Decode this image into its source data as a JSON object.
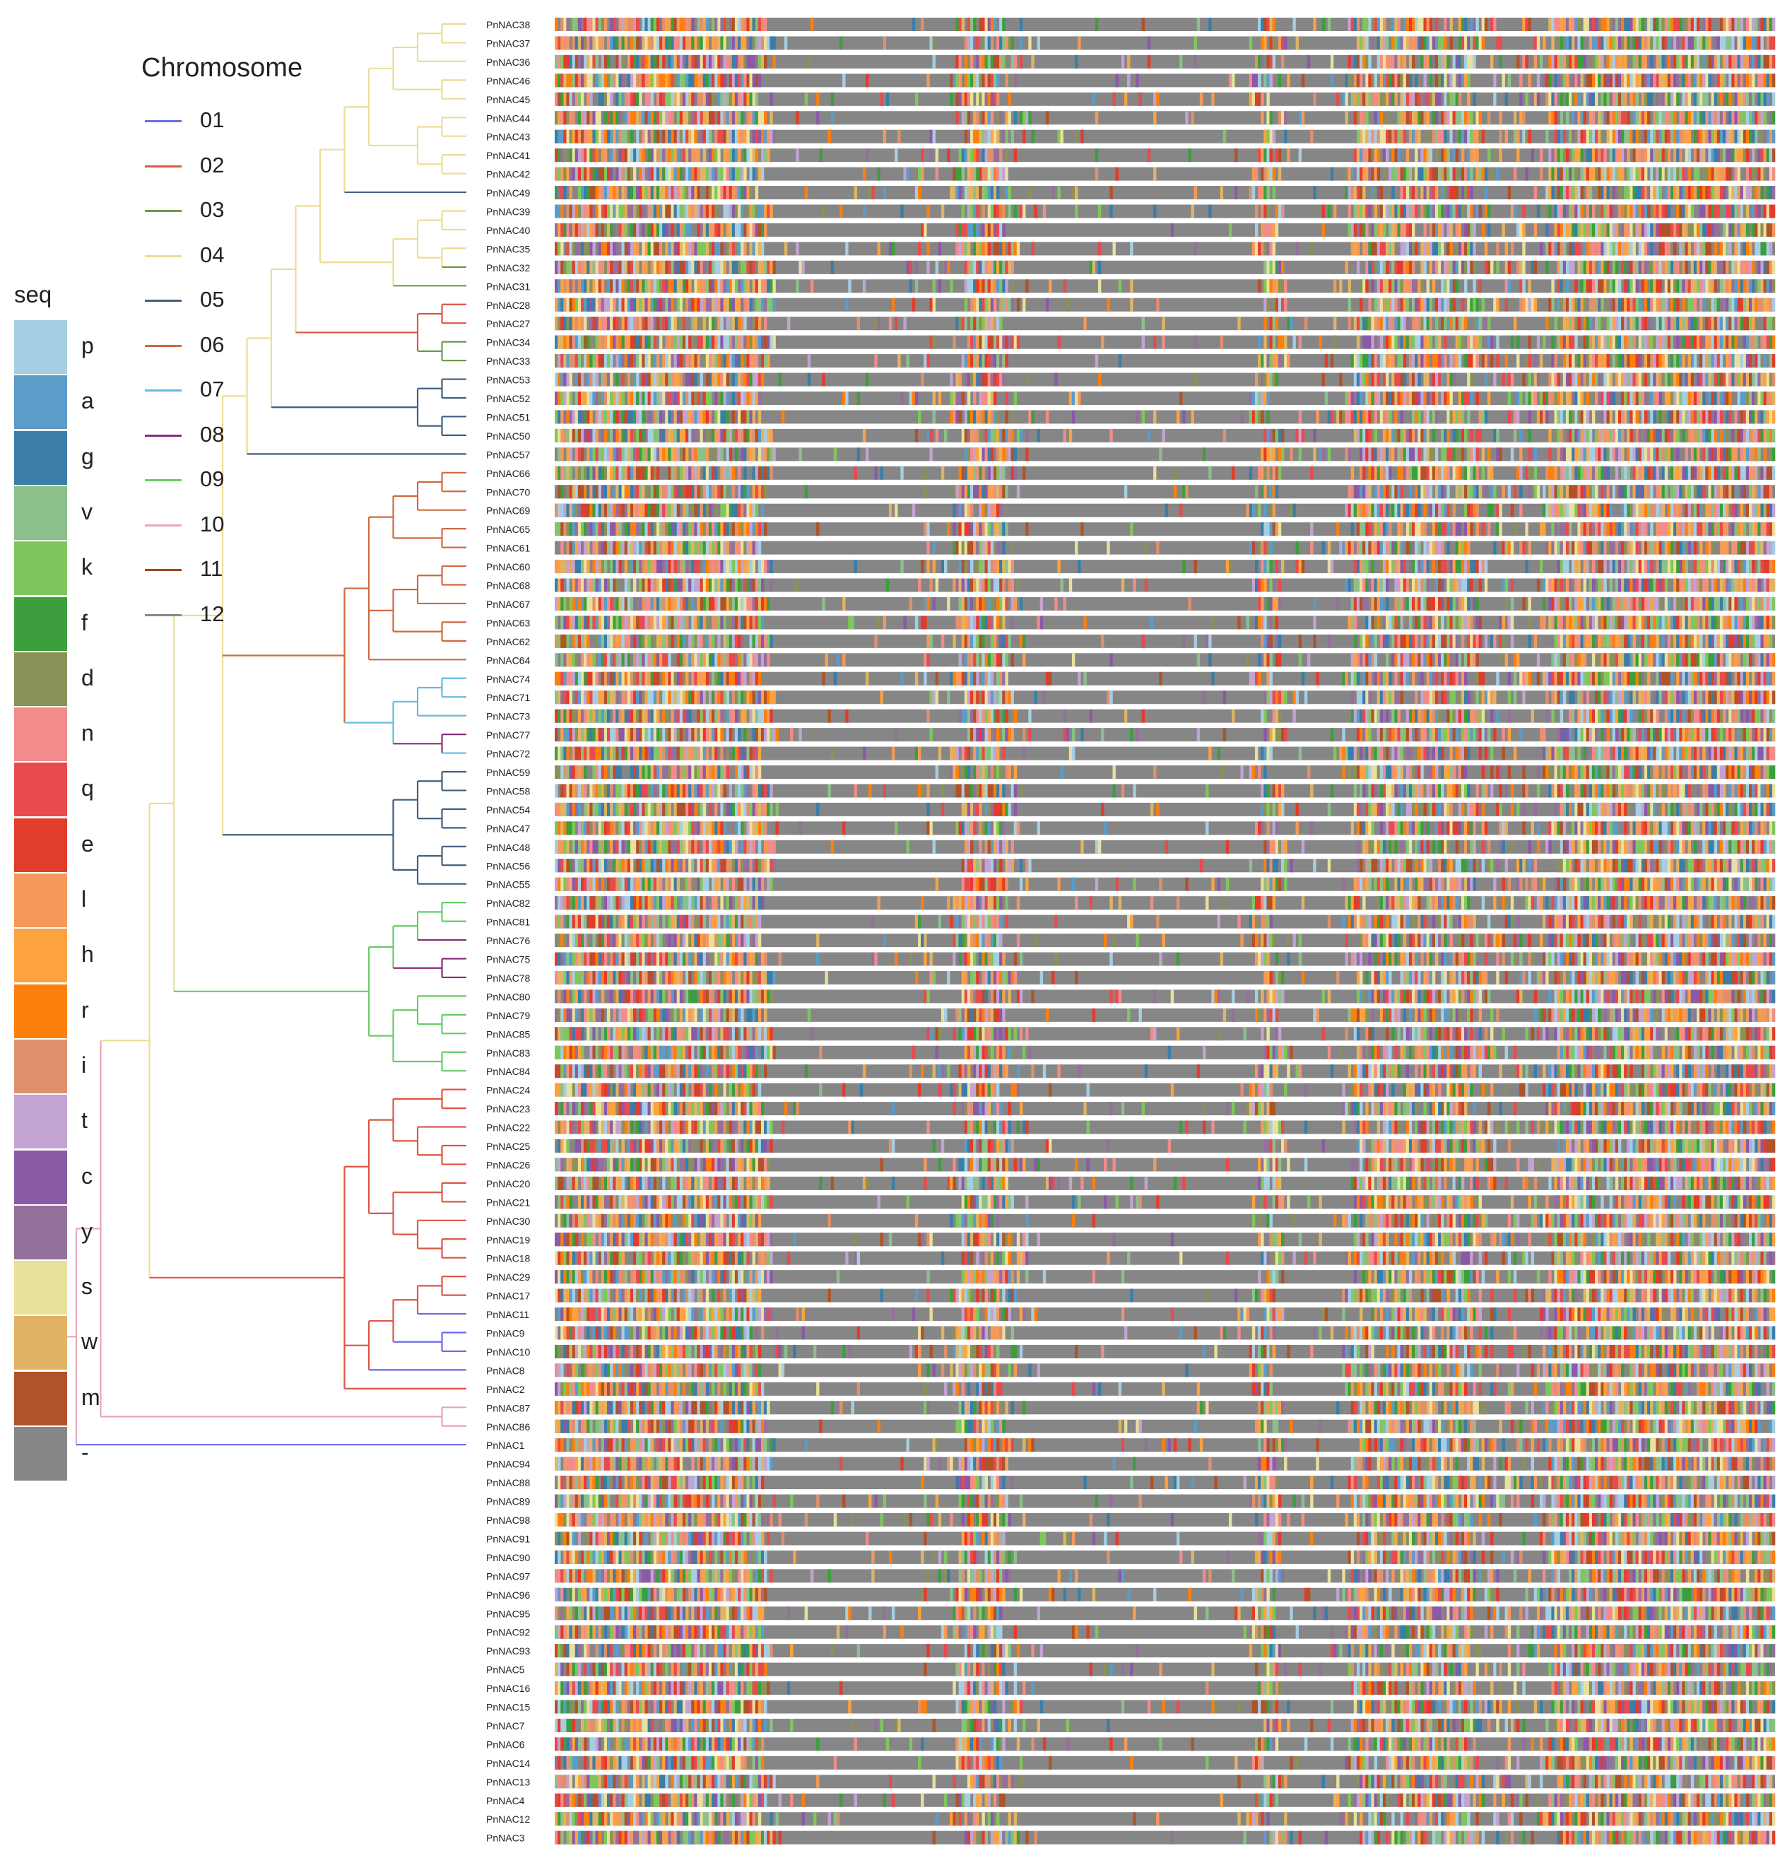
{
  "figure": {
    "chromosome_legend": {
      "title": "Chromosome",
      "items": [
        {
          "label": "01",
          "color": "#6a6ae8"
        },
        {
          "label": "02",
          "color": "#dd5544"
        },
        {
          "label": "03",
          "color": "#6f9a4a"
        },
        {
          "label": "04",
          "color": "#ecdc96"
        },
        {
          "label": "05",
          "color": "#3f5f7f"
        },
        {
          "label": "06",
          "color": "#cf6a3f"
        },
        {
          "label": "07",
          "color": "#66b8e0"
        },
        {
          "label": "08",
          "color": "#8a2a7a"
        },
        {
          "label": "09",
          "color": "#66cc66"
        },
        {
          "label": "10",
          "color": "#e8a6b8"
        },
        {
          "label": "11",
          "color": "#9a4a1e"
        },
        {
          "label": "12",
          "color": "#888888"
        }
      ]
    },
    "seq_legend": {
      "title": "seq",
      "items": [
        {
          "label": "p",
          "color": "#a6cee3"
        },
        {
          "label": "a",
          "color": "#5b9cc9"
        },
        {
          "label": "g",
          "color": "#3a7ea8"
        },
        {
          "label": "v",
          "color": "#8cc08a"
        },
        {
          "label": "k",
          "color": "#7fc75c"
        },
        {
          "label": "f",
          "color": "#3d9e3d"
        },
        {
          "label": "d",
          "color": "#8b9258"
        },
        {
          "label": "n",
          "color": "#f28c8a"
        },
        {
          "label": "q",
          "color": "#e74b4e"
        },
        {
          "label": "e",
          "color": "#e23c2c"
        },
        {
          "label": "l",
          "color": "#f4995a"
        },
        {
          "label": "h",
          "color": "#fca240"
        },
        {
          "label": "r",
          "color": "#fd7f0e"
        },
        {
          "label": "i",
          "color": "#e0916c"
        },
        {
          "label": "t",
          "color": "#c2a3d2"
        },
        {
          "label": "c",
          "color": "#8a5aa6"
        },
        {
          "label": "y",
          "color": "#93719a"
        },
        {
          "label": "s",
          "color": "#e9e09c"
        },
        {
          "label": "w",
          "color": "#e0b464"
        },
        {
          "label": "m",
          "color": "#b0532a"
        },
        {
          "label": "-",
          "color": "#868686"
        }
      ]
    },
    "leaf_labels": [
      "PnNAC38",
      "PnNAC37",
      "PnNAC36",
      "PnNAC46",
      "PnNAC45",
      "PnNAC44",
      "PnNAC43",
      "PnNAC41",
      "PnNAC42",
      "PnNAC49",
      "PnNAC39",
      "PnNAC40",
      "PnNAC35",
      "PnNAC32",
      "PnNAC31",
      "PnNAC28",
      "PnNAC27",
      "PnNAC34",
      "PnNAC33",
      "PnNAC53",
      "PnNAC52",
      "PnNAC51",
      "PnNAC50",
      "PnNAC57",
      "PnNAC66",
      "PnNAC70",
      "PnNAC69",
      "PnNAC65",
      "PnNAC61",
      "PnNAC60",
      "PnNAC68",
      "PnNAC67",
      "PnNAC63",
      "PnNAC62",
      "PnNAC64",
      "PnNAC74",
      "PnNAC71",
      "PnNAC73",
      "PnNAC77",
      "PnNAC72",
      "PnNAC59",
      "PnNAC58",
      "PnNAC54",
      "PnNAC47",
      "PnNAC48",
      "PnNAC56",
      "PnNAC55",
      "PnNAC82",
      "PnNAC81",
      "PnNAC76",
      "PnNAC75",
      "PnNAC78",
      "PnNAC80",
      "PnNAC79",
      "PnNAC85",
      "PnNAC83",
      "PnNAC84",
      "PnNAC24",
      "PnNAC23",
      "PnNAC22",
      "PnNAC25",
      "PnNAC26",
      "PnNAC20",
      "PnNAC21",
      "PnNAC30",
      "PnNAC19",
      "PnNAC18",
      "PnNAC29",
      "PnNAC17",
      "PnNAC11",
      "PnNAC9",
      "PnNAC10",
      "PnNAC8",
      "PnNAC2",
      "PnNAC87",
      "PnNAC86",
      "PnNAC1",
      "PnNAC94",
      "PnNAC88",
      "PnNAC89",
      "PnNAC98",
      "PnNAC91",
      "PnNAC90",
      "PnNAC97",
      "PnNAC96",
      "PnNAC95",
      "PnNAC92",
      "PnNAC93",
      "PnNAC5",
      "PnNAC16",
      "PnNAC15",
      "PnNAC7",
      "PnNAC6",
      "PnNAC14",
      "PnNAC13",
      "PnNAC4",
      "PnNAC12",
      "PnNAC3"
    ],
    "tree_newick": "((((((((((((((((PnNAC38,PnNAC37),PnNAC36),(PnNAC46,PnNAC45)),((PnNAC44,PnNAC43),(PnNAC41,PnNAC42))),PnNAC49),(((PnNAC39,PnNAC40),(PnNAC35,PnNAC32)),PnNAC31)),((PnNAC28,PnNAC27),(PnNAC34,PnNAC33))),((PnNAC53,PnNAC52),(PnNAC51,PnNAC50))),PnNAC57),(((((PnNAC66,PnNAC70),PnNAC69),(PnNAC65,PnNAC61)),(((PnNAC60,PnNAC68),PnNAC67),(PnNAC63,PnNAC62)),PnNAC64),(((PnNAC74,PnNAC71),PnNAC73),(PnNAC77,PnNAC72))),(((PnNAC59,PnNAC58),(PnNAC54,PnNAC47)),((PnNAC48,PnNAC56),PnNAC55)))),((((PnNAC82,PnNAC81),PnNAC76),(PnNAC75,PnNAC78)),((PnNAC80,(PnNAC79,PnNAC85)),(PnNAC83,PnNAC84)))),((((PnNAC24,PnNAC23),(PnNAC22,(PnNAC25,PnNAC26))),((PnNAC20,PnNAC21),(PnNAC30,(PnNAC19,PnNAC18)))),((((PnNAC29,PnNAC17),PnNAC11),(PnNAC9,PnNAC10)),PnNAC8),PnNAC2))),(PnNAC87,PnNAC86)),PnNAC1),(PnNAC94,PnNAC88)),(((PnNAC89,PnNAC98),(PnNAC91,PnNAC90)),((PnNAC97,PnNAC96),PnNAC95))),(PnNAC92,PnNAC93)),((((PnNAC5,PnNAC16),PnNAC15),(PnNAC7,PnNAC6)),((PnNAC14,PnNAC13),PnNAC4)),(PnNAC12,PnNAC3)));",
    "alignment": {
      "gap_color_key": "-",
      "column_count": 420
    }
  }
}
